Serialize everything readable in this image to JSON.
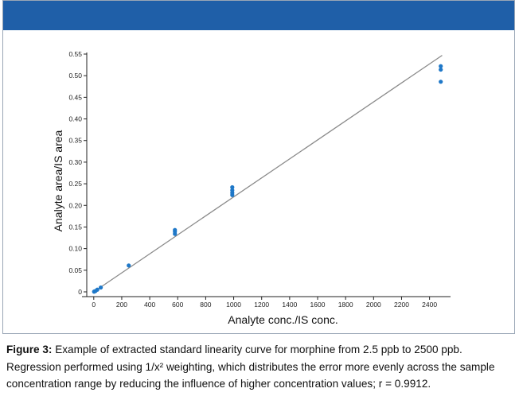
{
  "colors": {
    "header": "#1f5fa8",
    "points": "#1f78c8",
    "fit_line": "#8a8a8a",
    "axis": "#222222"
  },
  "caption": {
    "label": "Figure 3",
    "separator": ":",
    "text": "Example of extracted standard linearity curve for morphine from 2.5 ppb to 2500 ppb. Regression performed using 1/x² weighting, which distributes the error more evenly across the sample concentration range by reducing the influence of higher concentration values; r = 0.9912."
  },
  "chart_data": {
    "type": "scatter",
    "xlabel": "Analyte conc./IS conc.",
    "ylabel": "Analyte area/IS area",
    "xlim": [
      -50,
      2550
    ],
    "ylim": [
      0,
      0.55
    ],
    "xticks": [
      0,
      200,
      400,
      600,
      800,
      1000,
      1200,
      1400,
      1600,
      1800,
      2000,
      2200,
      2400
    ],
    "yticks": [
      0,
      0.05,
      0.1,
      0.15,
      0.2,
      0.25,
      0.3,
      0.35,
      0.4,
      0.45,
      0.5,
      0.55
    ],
    "ytick_labels": [
      "0",
      "0.05",
      "0.10",
      "0.15",
      "0.20",
      "0.25",
      "0.30",
      "0.35",
      "0.40",
      "0.45",
      "0.50",
      "0.55"
    ],
    "grid": false,
    "points": [
      {
        "x": 2.5,
        "y": 0.0005
      },
      {
        "x": 5,
        "y": 0.001
      },
      {
        "x": 12.5,
        "y": 0.002
      },
      {
        "x": 25,
        "y": 0.005
      },
      {
        "x": 50,
        "y": 0.01
      },
      {
        "x": 250,
        "y": 0.061
      },
      {
        "x": 580,
        "y": 0.134
      },
      {
        "x": 580,
        "y": 0.139
      },
      {
        "x": 580,
        "y": 0.143
      },
      {
        "x": 990,
        "y": 0.224
      },
      {
        "x": 990,
        "y": 0.229
      },
      {
        "x": 990,
        "y": 0.235
      },
      {
        "x": 990,
        "y": 0.242
      },
      {
        "x": 2480,
        "y": 0.486
      },
      {
        "x": 2480,
        "y": 0.514
      },
      {
        "x": 2480,
        "y": 0.522
      }
    ],
    "fit_line": {
      "x": [
        0,
        2490
      ],
      "y": [
        0,
        0.547
      ]
    }
  }
}
